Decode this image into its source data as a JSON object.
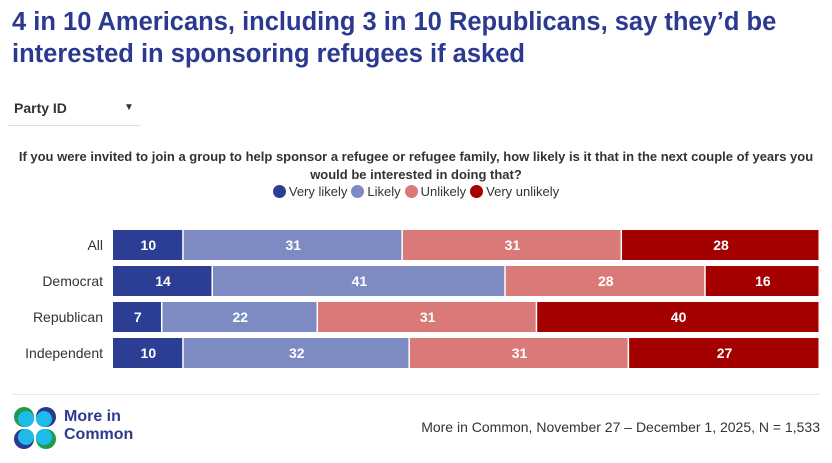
{
  "title": "4 in 10 Americans, including 3 in 10 Republicans, say they’d be interested in sponsoring refugees if asked",
  "filter": {
    "label": "Party ID"
  },
  "chart_data": {
    "type": "bar",
    "stacked": true,
    "orientation": "horizontal",
    "title": "If you were invited to join a group to help sponsor a refugee or refugee family, how likely is it that in the next couple of years you would be interested in doing that?",
    "categories": [
      "All",
      "Democrat",
      "Republican",
      "Independent"
    ],
    "series": [
      {
        "name": "Very likely",
        "color": "#2c3e94",
        "values": [
          10,
          14,
          7,
          10
        ]
      },
      {
        "name": "Likely",
        "color": "#7d8bc2",
        "values": [
          31,
          41,
          22,
          32
        ]
      },
      {
        "name": "Unlikely",
        "color": "#d97a78",
        "values": [
          31,
          28,
          31,
          31
        ]
      },
      {
        "name": "Very unlikely",
        "color": "#a50000",
        "values": [
          28,
          16,
          40,
          27
        ]
      }
    ],
    "legend_position": "top"
  },
  "footer": {
    "source": "More in Common, November 27 – December 1, 2025, N = 1,533",
    "logo_line1": "More in",
    "logo_line2": "Common"
  }
}
